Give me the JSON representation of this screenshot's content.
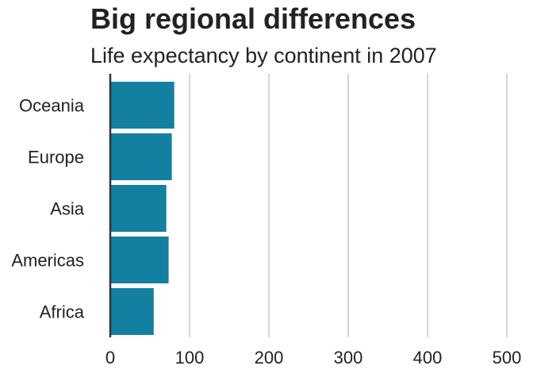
{
  "chart_data": {
    "type": "bar",
    "orientation": "horizontal",
    "title": "Big regional differences",
    "subtitle": "Life expectancy by continent in 2007",
    "xlabel": "",
    "ylabel": "",
    "categories": [
      "Oceania",
      "Europe",
      "Asia",
      "Americas",
      "Africa"
    ],
    "values": [
      80.7,
      77.6,
      70.7,
      73.6,
      54.8
    ],
    "xlim": [
      0,
      500
    ],
    "xticks": [
      "0",
      "100",
      "200",
      "300",
      "400",
      "500"
    ],
    "grid": "vertical",
    "legend": "none",
    "colors": {
      "bar": "#1380a1",
      "grid": "#cbcbcb",
      "baseline": "#333333",
      "text": "#222222"
    }
  }
}
